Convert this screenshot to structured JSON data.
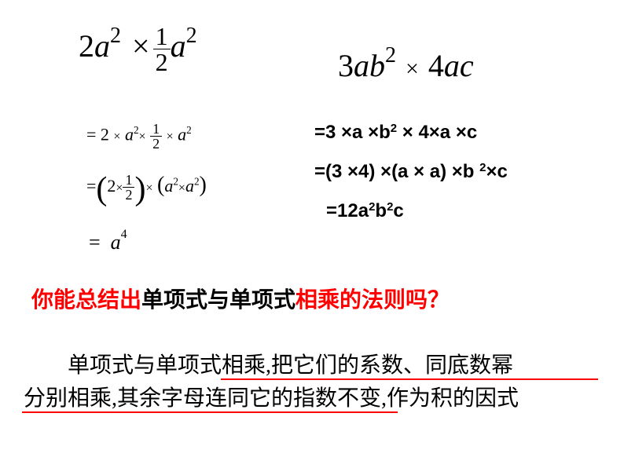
{
  "colors": {
    "red": "#ff0000",
    "black": "#000000",
    "background": "#ffffff"
  },
  "topLeft": {
    "coef1": "2",
    "var1": "a",
    "exp1": "2",
    "op": "×",
    "fracNum": "1",
    "fracDen": "2",
    "var2": "a",
    "exp2": "2"
  },
  "topRight": {
    "coef1": "3",
    "var1": "a",
    "var2": "b",
    "exp2": "2",
    "op": "×",
    "coef2": "4",
    "var3": "a",
    "var4": "c"
  },
  "leftSteps": {
    "s1": {
      "eq": "=",
      "a": "2",
      "x": "×",
      "v1": "a",
      "e1": "2",
      "fn": "1",
      "fd": "2",
      "v2": "a",
      "e2": "2"
    },
    "s2": {
      "eq": "=",
      "fn": "1",
      "fd": "2",
      "c": "2",
      "x": "×",
      "v": "a",
      "e": "2"
    },
    "s3": {
      "eq": "=",
      "sp": " ",
      "v": "a",
      "e": "4"
    }
  },
  "rightSteps": {
    "s1_pre": "=3 ×a ×b",
    "s1_exp": "2",
    "s1_post": " × 4×a ×c",
    "s2_pre": "=(3 ×4) ×(a × a) ×b ",
    "s2_exp": "2",
    "s2_post": "×c",
    "s3_pre": "=12a",
    "s3_e1": "2",
    "s3_mid": "b",
    "s3_e2": "2",
    "s3_post": "c"
  },
  "question": {
    "p1": "你能总结出",
    "p2": "单项式与单项式",
    "p3": "相乘的法则吗",
    "qm": "？"
  },
  "rule": {
    "line1a": "单项式与单项式相乘,把它们的系数、同底数幂",
    "line2": "分别相乘,其余字母连同它的指数不变,作为积的因式"
  }
}
